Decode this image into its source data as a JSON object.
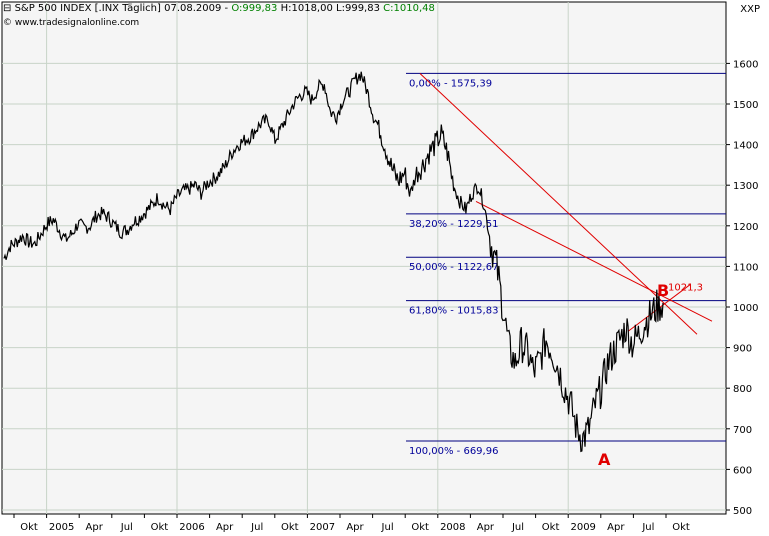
{
  "header": {
    "title": "S&P 500 INDEX [.INX  Täglich]",
    "date": "07.08.2009",
    "open": "O:999,83",
    "high": "H:1018,00",
    "low": "L:999,83",
    "close": "C:1010,48",
    "source": "© www.tradesignalonline.com",
    "symbol_label": "XXP"
  },
  "chart_data": {
    "type": "line",
    "y_ticks": [
      "500",
      "600",
      "700",
      "800",
      "900",
      "1000",
      "1100",
      "1200",
      "1300",
      "1400",
      "1500",
      "1600"
    ],
    "ylim": [
      495,
      1640
    ],
    "x_ticks": [
      "Okt",
      "2005",
      "Apr",
      "Jul",
      "Okt",
      "2006",
      "Apr",
      "Jul",
      "Okt",
      "2007",
      "Apr",
      "Jul",
      "Okt",
      "2008",
      "Apr",
      "Jul",
      "Okt",
      "2009",
      "Apr",
      "Jul",
      "Okt"
    ],
    "series": [
      {
        "values": [
          1120,
          1150,
          1160,
          1175,
          1160,
          1155,
          1180,
          1205,
          1215,
          1190,
          1165,
          1180,
          1205,
          1195,
          1200,
          1225,
          1230,
          1220,
          1200,
          1185,
          1190,
          1210,
          1220,
          1235,
          1250,
          1270,
          1250,
          1240,
          1270,
          1285,
          1290,
          1300,
          1280,
          1305,
          1315,
          1330,
          1350,
          1380,
          1400,
          1410,
          1420,
          1440,
          1455,
          1460,
          1410,
          1440,
          1470,
          1500,
          1520,
          1530,
          1510,
          1540,
          1550,
          1480,
          1470,
          1510,
          1530,
          1560,
          1575,
          1530,
          1470,
          1440,
          1390,
          1340,
          1310,
          1330,
          1280,
          1330,
          1350,
          1380,
          1400,
          1425,
          1380,
          1300,
          1260,
          1240,
          1280,
          1300,
          1250,
          1160,
          1100,
          1000,
          900,
          860,
          910,
          890,
          840,
          870,
          920,
          890,
          850,
          800,
          760,
          700,
          675,
          700,
          760,
          800,
          860,
          890,
          920,
          950,
          910,
          930,
          960,
          980,
          1000,
          1010
        ]
      }
    ],
    "fibonacci_levels": [
      {
        "label": "0,00% - 1575,39",
        "value": 1575.39
      },
      {
        "label": "38,20% - 1229,51",
        "value": 1229.51
      },
      {
        "label": "50,00% - 1122,67",
        "value": 1122.67
      },
      {
        "label": "61,80% - 1015,83",
        "value": 1015.83
      },
      {
        "label": "100,00% - 669,96",
        "value": 669.96
      }
    ],
    "annotations": [
      {
        "text": "A",
        "value": 669.96
      },
      {
        "text": "B",
        "value": 1020
      },
      {
        "text": "1021,3",
        "value": 1021.3
      }
    ],
    "colors": {
      "price": "#000000",
      "fib": "#000080",
      "fib_text": "#000099",
      "trend": "#e00000",
      "grid": "#c8d4c8",
      "background": "#f5f5f5"
    }
  }
}
